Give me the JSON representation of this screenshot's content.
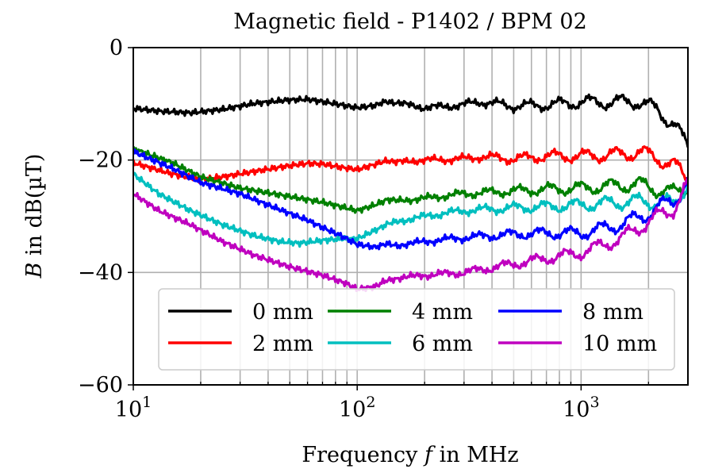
{
  "chart_data": {
    "type": "line",
    "title": "Magnetic field - P1402 / BPM 02",
    "xlabel": "Frequency f in MHz",
    "xlabel_parts": {
      "prefix": "Frequency ",
      "var": "f",
      "suffix": " in MHz"
    },
    "ylabel": "B in dB(µT)",
    "ylabel_parts": {
      "var": "B",
      "suffix": " in dB(µT)"
    },
    "x_scale": "log",
    "xlim": [
      10,
      3000
    ],
    "ylim": [
      -60,
      0
    ],
    "x_ticks": [
      {
        "value": 10,
        "base": "10",
        "exp": "1"
      },
      {
        "value": 100,
        "base": "10",
        "exp": "2"
      },
      {
        "value": 1000,
        "base": "10",
        "exp": "3"
      }
    ],
    "y_ticks": [
      {
        "value": 0,
        "label": "0"
      },
      {
        "value": -20,
        "label": "−20"
      },
      {
        "value": -40,
        "label": "−40"
      },
      {
        "value": -60,
        "label": "−60"
      }
    ],
    "grid": true,
    "legend_position": "lower-center",
    "legend_columns": 3,
    "series": [
      {
        "name": "0 mm",
        "color": "#000000",
        "x": [
          10,
          13,
          18,
          25,
          35,
          50,
          60,
          75,
          100,
          120,
          135,
          150,
          200,
          300,
          350,
          500,
          700,
          1000,
          1500,
          1800,
          2200,
          2600,
          3000
        ],
        "y": [
          -10.8,
          -11.3,
          -11.6,
          -11.0,
          -9.9,
          -9.3,
          -9.2,
          -9.8,
          -10.7,
          -10.3,
          -9.5,
          -9.8,
          -10.7,
          -10.2,
          -9.6,
          -10.4,
          -10.2,
          -9.7,
          -9.7,
          -9.5,
          -11.2,
          -13.5,
          -18.0
        ]
      },
      {
        "name": "2 mm",
        "color": "#ff0000",
        "x": [
          10,
          15,
          20,
          25,
          35,
          50,
          60,
          70,
          85,
          100,
          120,
          135,
          150,
          200,
          300,
          350,
          500,
          700,
          1000,
          1500,
          1800,
          2200,
          2600,
          3000
        ],
        "y": [
          -20.5,
          -22.5,
          -23.5,
          -23.0,
          -22.0,
          -21.0,
          -20.6,
          -20.7,
          -21.3,
          -21.7,
          -20.8,
          -20.0,
          -20.4,
          -20.0,
          -19.8,
          -19.4,
          -19.8,
          -19.3,
          -19.3,
          -19.0,
          -18.6,
          -19.6,
          -21.0,
          -23.5
        ]
      },
      {
        "name": "4 mm",
        "color": "#008000",
        "x": [
          10,
          15,
          20,
          30,
          50,
          70,
          100,
          120,
          135,
          150,
          200,
          300,
          500,
          700,
          1000,
          1500,
          1800,
          2200,
          2600,
          3000
        ],
        "y": [
          -18.0,
          -20.5,
          -23.0,
          -25.0,
          -26.5,
          -27.5,
          -29.0,
          -28.0,
          -27.0,
          -27.3,
          -26.8,
          -26.0,
          -25.5,
          -25.2,
          -25.0,
          -24.5,
          -24.3,
          -25.2,
          -26.0,
          -24.5
        ]
      },
      {
        "name": "6 mm",
        "color": "#00bfbf",
        "x": [
          10,
          13,
          18,
          25,
          35,
          45,
          55,
          70,
          85,
          100,
          120,
          135,
          150,
          200,
          300,
          500,
          700,
          1000,
          1500,
          2000,
          2600,
          3000
        ],
        "y": [
          -22.5,
          -26.0,
          -29.0,
          -31.5,
          -33.5,
          -34.5,
          -34.8,
          -34.3,
          -34.0,
          -34.0,
          -32.5,
          -31.5,
          -31.0,
          -30.0,
          -29.0,
          -28.5,
          -28.3,
          -28.0,
          -27.5,
          -27.3,
          -27.8,
          -24.0
        ]
      },
      {
        "name": "8 mm",
        "color": "#0000ff",
        "x": [
          10,
          15,
          20,
          30,
          40,
          50,
          60,
          70,
          85,
          100,
          120,
          135,
          150,
          200,
          300,
          500,
          700,
          1000,
          1500,
          2000,
          2600,
          3000
        ],
        "y": [
          -18.5,
          -21.5,
          -24.0,
          -26.0,
          -28.0,
          -29.5,
          -30.7,
          -32.0,
          -33.5,
          -35.0,
          -35.5,
          -35.0,
          -35.2,
          -34.5,
          -33.8,
          -33.2,
          -33.0,
          -33.0,
          -31.5,
          -29.5,
          -27.0,
          -24.0
        ]
      },
      {
        "name": "10 mm",
        "color": "#bf00bf",
        "x": [
          10,
          13,
          18,
          25,
          35,
          50,
          70,
          90,
          100,
          120,
          135,
          150,
          200,
          300,
          500,
          700,
          1000,
          1500,
          2000,
          2600,
          3000
        ],
        "y": [
          -26.0,
          -29.0,
          -31.5,
          -34.5,
          -37.0,
          -39.0,
          -40.5,
          -42.0,
          -43.0,
          -42.5,
          -41.5,
          -41.0,
          -40.5,
          -40.0,
          -38.5,
          -37.5,
          -36.5,
          -34.0,
          -31.0,
          -28.5,
          -24.5
        ]
      }
    ]
  }
}
